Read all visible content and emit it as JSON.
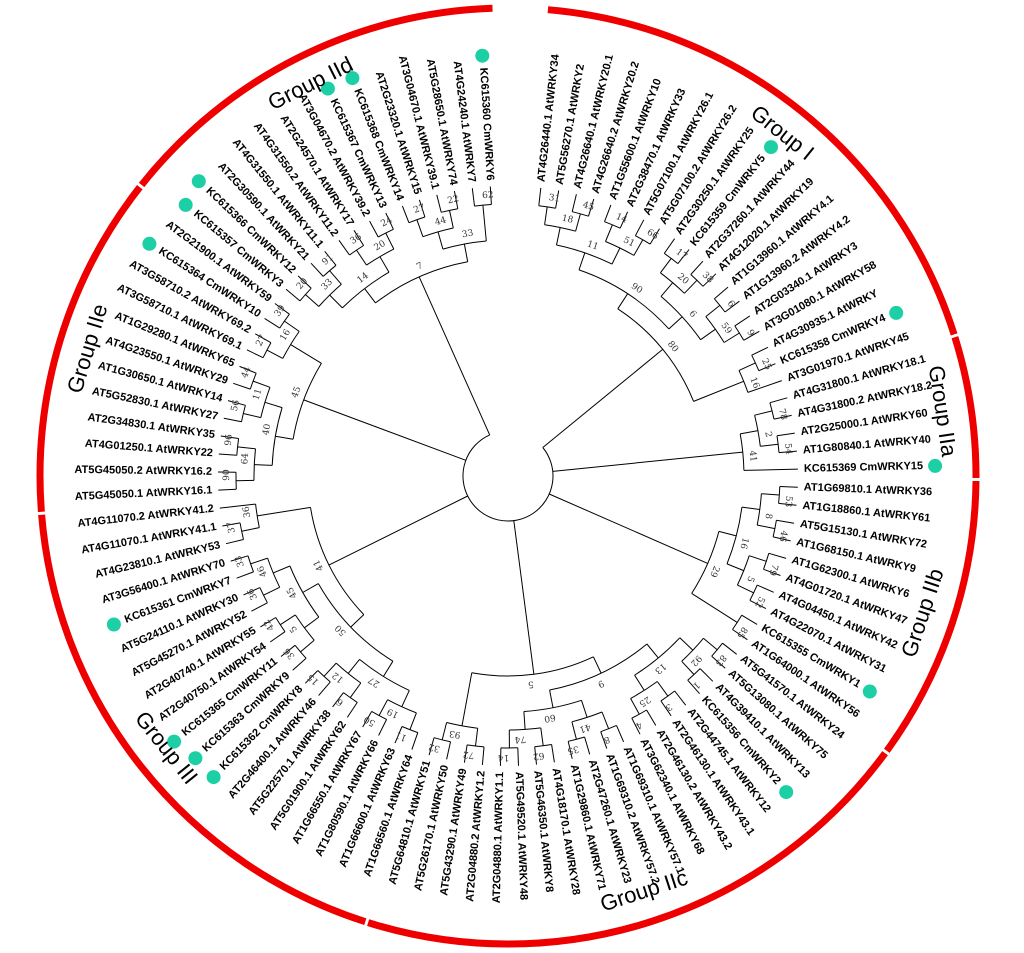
{
  "colors": {
    "group_arc": "#ee0000",
    "marker": "#1ccfa4",
    "branch": "#000000",
    "background": "#ffffff"
  },
  "groups": [
    {
      "id": "I",
      "label": "Group I"
    },
    {
      "id": "IIa",
      "label": "Group IIa"
    },
    {
      "id": "IIb",
      "label": "Group IIb"
    },
    {
      "id": "IIc",
      "label": "Group IIc"
    },
    {
      "id": "III",
      "label": "Group III"
    },
    {
      "id": "IIe",
      "label": "Group IIe"
    },
    {
      "id": "IId",
      "label": "Group IId"
    }
  ],
  "leaves": [
    {
      "label": "AT4G26440.1 AtWRKY34",
      "group": "I",
      "marked": false
    },
    {
      "label": "AT5G56270.1 AtWRKY2",
      "group": "I",
      "marked": false
    },
    {
      "label": "AT4G26640.1 AtWRKY20.1",
      "group": "I",
      "marked": false
    },
    {
      "label": "AT4G26640.2 AtWRKY20.2",
      "group": "I",
      "marked": false
    },
    {
      "label": "AT1G55600.1 AtWRKY10",
      "group": "I",
      "marked": false
    },
    {
      "label": "AT2G38470.1 AtWRKY33",
      "group": "I",
      "marked": false
    },
    {
      "label": "AT5G07100.1 AtWRKY26.1",
      "group": "I",
      "marked": false
    },
    {
      "label": "AT5G07100.2 AtWRKY26.2",
      "group": "I",
      "marked": false
    },
    {
      "label": "AT2G30250.1 AtWRKY25",
      "group": "I",
      "marked": false
    },
    {
      "label": "KC615359 CmWRKY5",
      "group": "I",
      "marked": true
    },
    {
      "label": "AT2G37260.1 AtWRKY44",
      "group": "I",
      "marked": false
    },
    {
      "label": "AT4G12020.1 AtWRKY19",
      "group": "I",
      "marked": false
    },
    {
      "label": "AT1G13960.1 AtWRKY4.1",
      "group": "I",
      "marked": false
    },
    {
      "label": "AT1G13960.2 AtWRKY4.2",
      "group": "I",
      "marked": false
    },
    {
      "label": "AT2G03340.1 AtWRKY3",
      "group": "I",
      "marked": false
    },
    {
      "label": "AT3G01080.1 AtWRKY58",
      "group": "I",
      "marked": false
    },
    {
      "label": "AT4G30935.1 AtWRKY",
      "group": "I",
      "marked": false
    },
    {
      "label": "KC615358 CmWRKY4",
      "group": "I",
      "marked": true
    },
    {
      "label": "AT3G01970.1 AtWRKY45",
      "group": "I",
      "marked": false
    },
    {
      "label": "AT4G31800.1 AtWRKY18.1",
      "group": "IIa",
      "marked": false
    },
    {
      "label": "AT4G31800.2 AtWRKY18.2",
      "group": "IIa",
      "marked": false
    },
    {
      "label": "AT2G25000.1 AtWRKY60",
      "group": "IIa",
      "marked": false
    },
    {
      "label": "AT1G80840.1 AtWRKY40",
      "group": "IIa",
      "marked": false
    },
    {
      "label": "KC615369 CmWRKY15",
      "group": "IIa",
      "marked": true
    },
    {
      "label": "AT1G69810.1 AtWRKY36",
      "group": "IIb",
      "marked": false
    },
    {
      "label": "AT1G18860.1 AtWRKY61",
      "group": "IIb",
      "marked": false
    },
    {
      "label": "AT5G15130.1 AtWRKY72",
      "group": "IIb",
      "marked": false
    },
    {
      "label": "AT1G68150.1 AtWRKY9",
      "group": "IIb",
      "marked": false
    },
    {
      "label": "AT1G62300.1 AtWRKY6",
      "group": "IIb",
      "marked": false
    },
    {
      "label": "AT4G01720.1 AtWRKY47",
      "group": "IIb",
      "marked": false
    },
    {
      "label": "AT4G04450.1 AtWRKY42",
      "group": "IIb",
      "marked": false
    },
    {
      "label": "AT4G22070.1 AtWRKY31",
      "group": "IIb",
      "marked": false
    },
    {
      "label": "KC615355 CmWRKY1",
      "group": "IIb",
      "marked": true
    },
    {
      "label": "AT1G64000.1 AtWRKY56",
      "group": "IIb",
      "marked": false
    },
    {
      "label": "AT5G41570.1 AtWRKY24",
      "group": "IIc",
      "marked": false
    },
    {
      "label": "AT5G13080.1 AtWRKY75",
      "group": "IIc",
      "marked": false
    },
    {
      "label": "AT4G39410.1 AtWRKY13",
      "group": "IIc",
      "marked": false
    },
    {
      "label": "KC615356 CmWRKY2",
      "group": "IIc",
      "marked": true
    },
    {
      "label": "AT2G44745.1 AtWRKY12",
      "group": "IIc",
      "marked": false
    },
    {
      "label": "AT2G46130.1 AtWRKY43.1",
      "group": "IIc",
      "marked": false
    },
    {
      "label": "AT2G46130.2 AtWRKY43.2",
      "group": "IIc",
      "marked": false
    },
    {
      "label": "AT3G62340.1 AtWRKY68",
      "group": "IIc",
      "marked": false
    },
    {
      "label": "AT1G69310.1 AtWRKY57.1",
      "group": "IIc",
      "marked": false
    },
    {
      "label": "AT1G69310.2 AtWRKY57.2",
      "group": "IIc",
      "marked": false
    },
    {
      "label": "AT2G47260.1 AtWRKY23",
      "group": "IIc",
      "marked": false
    },
    {
      "label": "AT1G29860.1 AtWRKY71",
      "group": "IIc",
      "marked": false
    },
    {
      "label": "AT4G18170.1 AtWRKY28",
      "group": "IIc",
      "marked": false
    },
    {
      "label": "AT5G46350.1 AtWRKY8",
      "group": "IIc",
      "marked": false
    },
    {
      "label": "AT5G49520.1 AtWRKY48",
      "group": "IIc",
      "marked": false
    },
    {
      "label": "AT2G04880.1 AtWRKY1.1",
      "group": "IIc",
      "marked": false
    },
    {
      "label": "AT2G04880.2 AtWRKY1.2",
      "group": "IIc",
      "marked": false
    },
    {
      "label": "AT5G43290.1 AtWRKY49",
      "group": "IIc",
      "marked": false
    },
    {
      "label": "AT5G26170.1 AtWRKY50",
      "group": "IIc",
      "marked": false
    },
    {
      "label": "AT5G64810.1 AtWRKY51",
      "group": "IIc",
      "marked": false
    },
    {
      "label": "AT1G66560.1 AtWRKY64",
      "group": "III",
      "marked": false
    },
    {
      "label": "AT1G66600.1 AtWRKY63",
      "group": "III",
      "marked": false
    },
    {
      "label": "AT1G80590.1 AtWRKY66",
      "group": "III",
      "marked": false
    },
    {
      "label": "AT1G66550.1 AtWRKY67",
      "group": "III",
      "marked": false
    },
    {
      "label": "AT5G01900.1 AtWRKY62",
      "group": "III",
      "marked": false
    },
    {
      "label": "AT5G22570.1 AtWRKY38",
      "group": "III",
      "marked": false
    },
    {
      "label": "AT2G46400.1 AtWRKY46",
      "group": "III",
      "marked": false
    },
    {
      "label": "KC615362 CmWRKY8",
      "group": "III",
      "marked": true
    },
    {
      "label": "KC615363 CmWRKY9",
      "group": "III",
      "marked": true
    },
    {
      "label": "KC615365 CmWRKY11",
      "group": "III",
      "marked": true
    },
    {
      "label": "AT2G40750.1 AtWRKY54",
      "group": "III",
      "marked": false
    },
    {
      "label": "AT2G40740.1 AtWRKY55",
      "group": "III",
      "marked": false
    },
    {
      "label": "AT5G45270.1 AtWRKY52",
      "group": "III",
      "marked": false
    },
    {
      "label": "AT5G24110.1 AtWRKY30",
      "group": "III",
      "marked": false
    },
    {
      "label": "KC615361 CmWRKY7",
      "group": "III",
      "marked": true
    },
    {
      "label": "AT3G56400.1 AtWRKY70",
      "group": "III",
      "marked": false
    },
    {
      "label": "AT4G23810.1 AtWRKY53",
      "group": "III",
      "marked": false
    },
    {
      "label": "AT4G11070.1 AtWRKY41.1",
      "group": "III",
      "marked": false
    },
    {
      "label": "AT4G11070.2 AtWRKY41.2",
      "group": "III",
      "marked": false
    },
    {
      "label": "AT5G45050.1 AtWRKY16.1",
      "group": "IIe",
      "marked": false
    },
    {
      "label": "AT5G45050.2 AtWRKY16.2",
      "group": "IIe",
      "marked": false
    },
    {
      "label": "AT4G01250.1 AtWRKY22",
      "group": "IIe",
      "marked": false
    },
    {
      "label": "AT2G34830.1 AtWRKY35",
      "group": "IIe",
      "marked": false
    },
    {
      "label": "AT5G52830.1 AtWRKY27",
      "group": "IIe",
      "marked": false
    },
    {
      "label": "AT1G30650.1 AtWRKY14",
      "group": "IIe",
      "marked": false
    },
    {
      "label": "AT4G23550.1 AtWRKY29",
      "group": "IIe",
      "marked": false
    },
    {
      "label": "AT1G29280.1 AtWRKY65",
      "group": "IIe",
      "marked": false
    },
    {
      "label": "AT3G58710.1 AtWRKY69.1",
      "group": "IIe",
      "marked": false
    },
    {
      "label": "AT3G58710.2 AtWRKY69.2",
      "group": "IIe",
      "marked": false
    },
    {
      "label": "KC615364 CmWRKY10",
      "group": "IIe",
      "marked": true
    },
    {
      "label": "AT2G21900.1 AtWRKY59",
      "group": "IIe",
      "marked": false
    },
    {
      "label": "KC615357 CmWRKY3",
      "group": "IId",
      "marked": true
    },
    {
      "label": "KC615366 CmWRKY12",
      "group": "IId",
      "marked": true
    },
    {
      "label": "AT2G30590.1 AtWRKY21",
      "group": "IId",
      "marked": false
    },
    {
      "label": "AT4G31550.1 AtWRKY11.1",
      "group": "IId",
      "marked": false
    },
    {
      "label": "AT4G31550.2 AtWRKY11.2",
      "group": "IId",
      "marked": false
    },
    {
      "label": "AT2G24570.1 AtWRKY17",
      "group": "IId",
      "marked": false
    },
    {
      "label": "AT3G04670.2 AtWRKY39.2",
      "group": "IId",
      "marked": false
    },
    {
      "label": "KC615367 CmWRKY13",
      "group": "IId",
      "marked": true
    },
    {
      "label": "KC615368 CmWRKY14",
      "group": "IId",
      "marked": true
    },
    {
      "label": "AT2G23320.1 AtWRKY15",
      "group": "IId",
      "marked": false
    },
    {
      "label": "AT3G04670.1 AtWRKY39.1",
      "group": "IId",
      "marked": false
    },
    {
      "label": "AT5G28650.1 AtWRKY74",
      "group": "IId",
      "marked": false
    },
    {
      "label": "AT4G24240.1 AtWRKY7",
      "group": "IId",
      "marked": false
    },
    {
      "label": "KC615360 CmWRKY6",
      "group": "IId",
      "marked": true
    }
  ],
  "bootstrap_values": [
    "31",
    "45",
    "14",
    "66",
    "17",
    "38",
    "6",
    "9",
    "25",
    "18",
    "51",
    "20",
    "59",
    "16",
    "11",
    "6",
    "90",
    "80",
    "78",
    "54",
    "2",
    "41",
    "53",
    "46",
    "79",
    "52",
    "85",
    "8",
    "5",
    "16",
    "29",
    "83",
    "1",
    "3",
    "4",
    "8",
    "35",
    "62",
    "14",
    "72",
    "32",
    "92",
    "25",
    "41",
    "74",
    "93",
    "13",
    "60",
    "9",
    "5",
    "11",
    "50",
    "6",
    "15",
    "36",
    "42",
    "36",
    "33",
    "37",
    "19",
    "12",
    "5",
    "46",
    "36",
    "27",
    "45",
    "50",
    "41",
    "90",
    "96",
    "56",
    "44",
    "27",
    "39",
    "64",
    "11",
    "16",
    "40",
    "45",
    "20",
    "91",
    "36",
    "24",
    "27",
    "22",
    "62",
    "33",
    "20",
    "44",
    "14",
    "33",
    "7",
    "6"
  ]
}
